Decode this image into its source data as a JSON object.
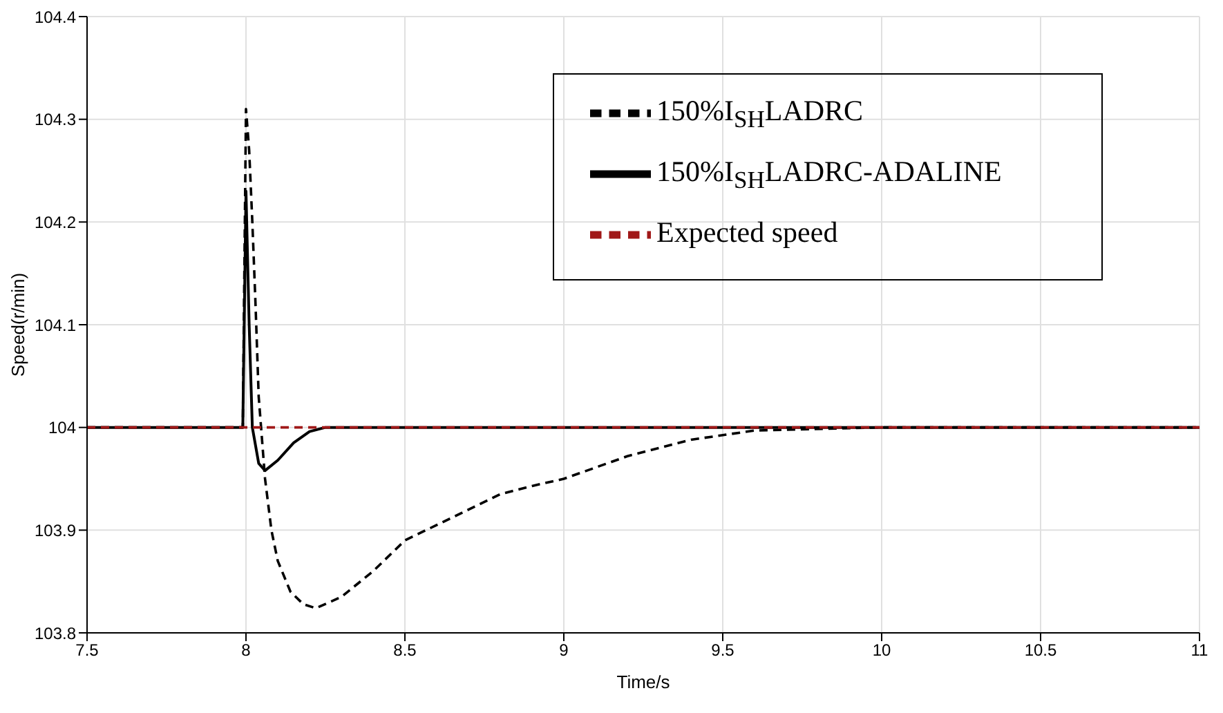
{
  "chart_data": {
    "type": "line",
    "xlabel": "Time/s",
    "ylabel": "Speed(r/min)",
    "xlim": [
      7.5,
      11
    ],
    "xticks": [
      7.5,
      8,
      8.5,
      9,
      9.5,
      10,
      10.5,
      11
    ],
    "ylim": [
      103.8,
      104.4
    ],
    "yticks": [
      103.8,
      103.9,
      104,
      104.1,
      104.2,
      104.3,
      104.4
    ],
    "grid": true,
    "legend": "top right",
    "marker": "none",
    "series": [
      {
        "name": "150%I$_{SH}$LADRC-ADALINE",
        "color": "#000000",
        "line_style": "solid",
        "x": [
          7.5,
          7.99,
          8.0,
          8.01,
          8.02,
          8.04,
          8.06,
          8.1,
          8.15,
          8.2,
          8.25,
          11
        ],
        "values": [
          104,
          104,
          104.23,
          104.1,
          104.0,
          103.965,
          103.958,
          103.968,
          103.985,
          103.996,
          104,
          104
        ]
      },
      {
        "name": "150%I$_{SH}$LADRC",
        "color": "#000000",
        "line_style": "dashed",
        "x": [
          7.5,
          7.99,
          8.0,
          8.01,
          8.02,
          8.03,
          8.04,
          8.06,
          8.08,
          8.1,
          8.14,
          8.18,
          8.22,
          8.3,
          8.4,
          8.5,
          8.6,
          8.7,
          8.8,
          8.9,
          9,
          9.2,
          9.4,
          9.6,
          10,
          11
        ],
        "values": [
          104,
          104,
          104.31,
          104.27,
          104.2,
          104.12,
          104.03,
          103.95,
          103.9,
          103.87,
          103.84,
          103.828,
          103.824,
          103.835,
          103.86,
          103.89,
          103.905,
          103.92,
          103.935,
          103.943,
          103.95,
          103.972,
          103.988,
          103.997,
          104,
          104
        ]
      },
      {
        "name": "Expected speed",
        "color": "#a01818",
        "line_style": "dashed",
        "x": [
          7.5,
          11
        ],
        "values": [
          104,
          104
        ]
      }
    ]
  }
}
